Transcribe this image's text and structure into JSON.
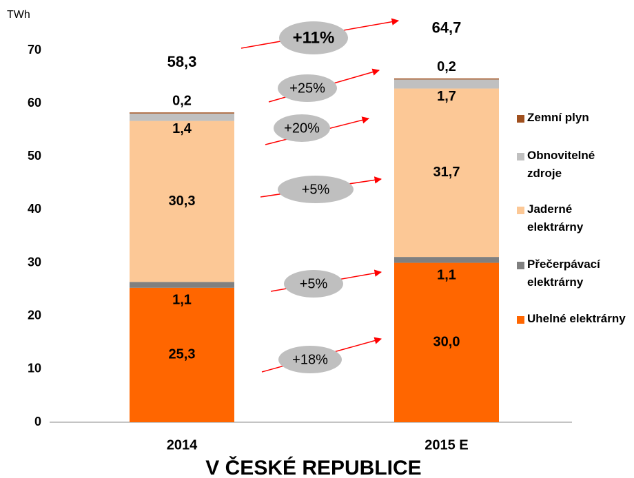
{
  "chart_data": {
    "type": "stacked-bar",
    "title": "V ČESKÉ REPUBLICE",
    "y_axis_label": "TWh",
    "categories": [
      "2014",
      "2015 E"
    ],
    "series": [
      {
        "name": "Uhelné elektrárny",
        "color": "#ff6600",
        "values": [
          25.3,
          30.0
        ],
        "value_labels": [
          "25,3",
          "30,0"
        ]
      },
      {
        "name": "Přečerpávací elektrárny",
        "color": "#808080",
        "values": [
          1.1,
          1.1
        ],
        "value_labels": [
          "1,1",
          "1,1"
        ]
      },
      {
        "name": "Jaderné elektrárny",
        "color": "#fcc896",
        "values": [
          30.3,
          31.7
        ],
        "value_labels": [
          "30,3",
          "31,7"
        ]
      },
      {
        "name": "Obnovitelné zdroje",
        "color": "#c0c0c0",
        "values": [
          1.4,
          1.7
        ],
        "value_labels": [
          "1,4",
          "1,7"
        ]
      },
      {
        "name": "Zemní plyn",
        "color": "#a0501e",
        "values": [
          0.2,
          0.2
        ],
        "value_labels": [
          "0,2",
          "0,2"
        ]
      }
    ],
    "totals": [
      58.3,
      64.7
    ],
    "total_labels": [
      "58,3",
      "64,7"
    ],
    "annotations": [
      "+18%",
      "+5%",
      "+5%",
      "+20%",
      "+25%",
      "+11%"
    ],
    "ylim": [
      0,
      70
    ],
    "yticks": [
      0,
      10,
      20,
      30,
      40,
      50,
      60,
      70
    ],
    "grid": false
  }
}
